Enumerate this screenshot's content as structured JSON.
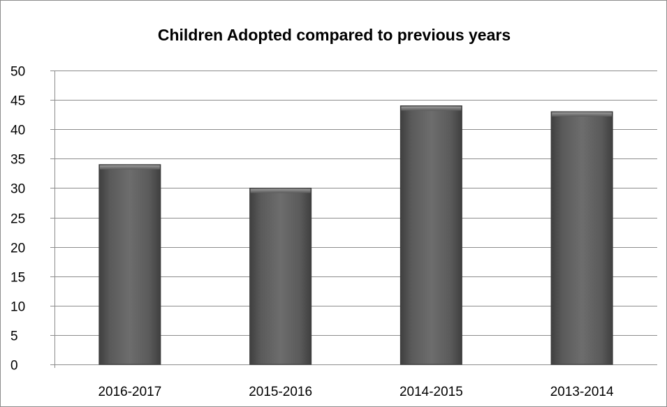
{
  "chart_data": {
    "type": "bar",
    "title": "Children Adopted compared to previous years",
    "categories": [
      "2016-2017",
      "2015-2016",
      "2014-2015",
      "2013-2014"
    ],
    "values": [
      34,
      30,
      44,
      43
    ],
    "ylim": [
      0,
      50
    ],
    "yticks": [
      0,
      5,
      10,
      15,
      20,
      25,
      30,
      35,
      40,
      45,
      50
    ],
    "grid": true,
    "legend": "none",
    "colors": {
      "bar": "#5c5c5c",
      "bar_highlight": "#6e6e6e",
      "grid": "#8c8c8c",
      "axis": "#8c8c8c"
    }
  }
}
